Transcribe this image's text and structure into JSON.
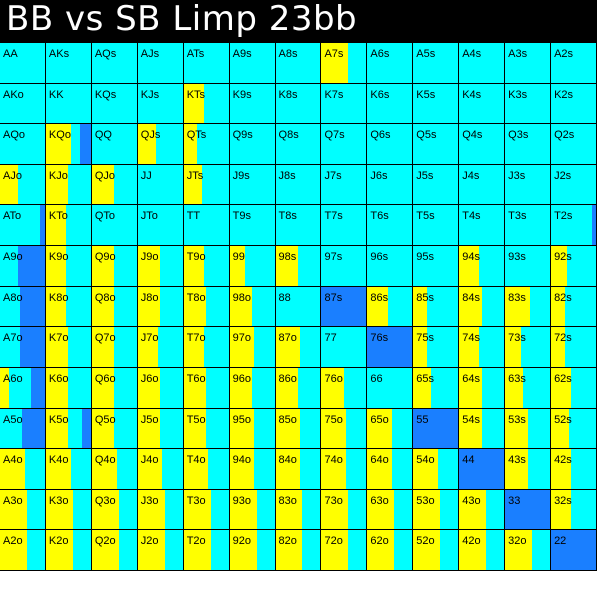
{
  "title": "BB vs SB Limp 23bb",
  "colors": {
    "fold": "#ffff00",
    "call": "#00ffff",
    "raise": "#1a7fff",
    "border": "#000000",
    "title_bg": "#000000",
    "title_fg": "#ffffff"
  },
  "legend_keys": [
    "fold",
    "call",
    "raise"
  ],
  "hands": [
    [
      "AA",
      "AKs",
      "AQs",
      "AJs",
      "ATs",
      "A9s",
      "A8s",
      "A7s",
      "A6s",
      "A5s",
      "A4s",
      "A3s",
      "A2s"
    ],
    [
      "AKo",
      "KK",
      "KQs",
      "KJs",
      "KTs",
      "K9s",
      "K8s",
      "K7s",
      "K6s",
      "K5s",
      "K4s",
      "K3s",
      "K2s"
    ],
    [
      "AQo",
      "KQo",
      "QQ",
      "QJs",
      "QTs",
      "Q9s",
      "Q8s",
      "Q7s",
      "Q6s",
      "Q5s",
      "Q4s",
      "Q3s",
      "Q2s"
    ],
    [
      "AJo",
      "KJo",
      "QJo",
      "JJ",
      "JTs",
      "J9s",
      "J8s",
      "J7s",
      "J6s",
      "J5s",
      "J4s",
      "J3s",
      "J2s"
    ],
    [
      "ATo",
      "KTo",
      "QTo",
      "JTo",
      "TT",
      "T9s",
      "T8s",
      "T7s",
      "T6s",
      "T5s",
      "T4s",
      "T3s",
      "T2s"
    ],
    [
      "A9o",
      "K9o",
      "Q9o",
      "J9o",
      "T9o",
      "99",
      "98s",
      "97s",
      "96s",
      "95s",
      "94s",
      "93s",
      "92s"
    ],
    [
      "A8o",
      "K8o",
      "Q8o",
      "J8o",
      "T8o",
      "98o",
      "88",
      "87s",
      "86s",
      "85s",
      "84s",
      "83s",
      "82s"
    ],
    [
      "A7o",
      "K7o",
      "Q7o",
      "J7o",
      "T7o",
      "97o",
      "87o",
      "77",
      "76s",
      "75s",
      "74s",
      "73s",
      "72s"
    ],
    [
      "A6o",
      "K6o",
      "Q6o",
      "J6o",
      "T6o",
      "96o",
      "86o",
      "76o",
      "66",
      "65s",
      "64s",
      "63s",
      "62s"
    ],
    [
      "A5o",
      "K5o",
      "Q5o",
      "J5o",
      "T5o",
      "95o",
      "85o",
      "75o",
      "65o",
      "55",
      "54s",
      "53s",
      "52s"
    ],
    [
      "A4o",
      "K4o",
      "Q4o",
      "J4o",
      "T4o",
      "94o",
      "84o",
      "74o",
      "64o",
      "54o",
      "44",
      "43s",
      "42s"
    ],
    [
      "A3o",
      "K3o",
      "Q3o",
      "J3o",
      "T3o",
      "93o",
      "83o",
      "73o",
      "63o",
      "53o",
      "43o",
      "33",
      "32s"
    ],
    [
      "A2o",
      "K2o",
      "Q2o",
      "J2o",
      "T2o",
      "92o",
      "82o",
      "72o",
      "62o",
      "52o",
      "42o",
      "32o",
      "22"
    ]
  ],
  "strategy": [
    [
      [
        0,
        1,
        0
      ],
      [
        0,
        1,
        0
      ],
      [
        0,
        1,
        0
      ],
      [
        0,
        1,
        0
      ],
      [
        0,
        1,
        0
      ],
      [
        0,
        1,
        0
      ],
      [
        0,
        1,
        0
      ],
      [
        0.6,
        0.4,
        0
      ],
      [
        0,
        1,
        0
      ],
      [
        0,
        1,
        0
      ],
      [
        0,
        1,
        0
      ],
      [
        0,
        1,
        0
      ],
      [
        0,
        1,
        0
      ]
    ],
    [
      [
        0,
        1,
        0
      ],
      [
        0,
        1,
        0
      ],
      [
        0,
        1,
        0
      ],
      [
        0,
        1,
        0
      ],
      [
        0.45,
        0.55,
        0
      ],
      [
        0,
        1,
        0
      ],
      [
        0,
        1,
        0
      ],
      [
        0,
        1,
        0
      ],
      [
        0,
        1,
        0
      ],
      [
        0,
        1,
        0
      ],
      [
        0,
        1,
        0
      ],
      [
        0,
        1,
        0
      ],
      [
        0,
        1,
        0
      ]
    ],
    [
      [
        0,
        1,
        0
      ],
      [
        0.55,
        0.2,
        0.25
      ],
      [
        0,
        1,
        0
      ],
      [
        0.4,
        0.6,
        0
      ],
      [
        0.3,
        0.7,
        0
      ],
      [
        0,
        1,
        0
      ],
      [
        0,
        1,
        0
      ],
      [
        0,
        1,
        0
      ],
      [
        0,
        1,
        0
      ],
      [
        0,
        1,
        0
      ],
      [
        0,
        1,
        0
      ],
      [
        0,
        1,
        0
      ],
      [
        0,
        1,
        0
      ]
    ],
    [
      [
        0.4,
        0.6,
        0
      ],
      [
        0.5,
        0.5,
        0
      ],
      [
        0.5,
        0.5,
        0
      ],
      [
        0,
        1,
        0
      ],
      [
        0.4,
        0.6,
        0
      ],
      [
        0,
        1,
        0
      ],
      [
        0,
        1,
        0
      ],
      [
        0,
        1,
        0
      ],
      [
        0,
        1,
        0
      ],
      [
        0,
        1,
        0
      ],
      [
        0,
        1,
        0
      ],
      [
        0,
        1,
        0
      ],
      [
        0,
        1,
        0
      ]
    ],
    [
      [
        0,
        0.9,
        0.1
      ],
      [
        0.45,
        0.55,
        0
      ],
      [
        0,
        1,
        0
      ],
      [
        0,
        1,
        0
      ],
      [
        0,
        1,
        0
      ],
      [
        0,
        1,
        0
      ],
      [
        0,
        1,
        0
      ],
      [
        0,
        1,
        0
      ],
      [
        0,
        1,
        0
      ],
      [
        0,
        1,
        0
      ],
      [
        0,
        1,
        0
      ],
      [
        0,
        1,
        0
      ],
      [
        0,
        0.92,
        0.08
      ]
    ],
    [
      [
        0,
        0.4,
        0.6
      ],
      [
        0.45,
        0.55,
        0
      ],
      [
        0.5,
        0.5,
        0
      ],
      [
        0.5,
        0.5,
        0
      ],
      [
        0.45,
        0.55,
        0
      ],
      [
        0.35,
        0.65,
        0
      ],
      [
        0.5,
        0.5,
        0
      ],
      [
        0,
        1,
        0
      ],
      [
        0,
        1,
        0
      ],
      [
        0,
        1,
        0
      ],
      [
        0.45,
        0.55,
        0
      ],
      [
        0,
        1,
        0
      ],
      [
        0.35,
        0.65,
        0
      ]
    ],
    [
      [
        0,
        0.45,
        0.55
      ],
      [
        0.45,
        0.55,
        0
      ],
      [
        0.5,
        0.5,
        0
      ],
      [
        0.5,
        0.5,
        0
      ],
      [
        0.5,
        0.5,
        0
      ],
      [
        0.5,
        0.5,
        0
      ],
      [
        0,
        1,
        0
      ],
      [
        0,
        0,
        1
      ],
      [
        0.45,
        0.55,
        0
      ],
      [
        0.3,
        0.7,
        0
      ],
      [
        0.5,
        0.5,
        0
      ],
      [
        0.55,
        0.45,
        0
      ],
      [
        0.3,
        0.7,
        0
      ]
    ],
    [
      [
        0,
        0.45,
        0.55
      ],
      [
        0.5,
        0.5,
        0
      ],
      [
        0.5,
        0.5,
        0
      ],
      [
        0.45,
        0.55,
        0
      ],
      [
        0.45,
        0.55,
        0
      ],
      [
        0.55,
        0.45,
        0
      ],
      [
        0.55,
        0.45,
        0
      ],
      [
        0,
        1,
        0
      ],
      [
        0,
        0,
        1
      ],
      [
        0.3,
        0.7,
        0
      ],
      [
        0.45,
        0.55,
        0
      ],
      [
        0.35,
        0.65,
        0
      ],
      [
        0.3,
        0.7,
        0
      ]
    ],
    [
      [
        0.2,
        0.5,
        0.3
      ],
      [
        0.5,
        0.5,
        0
      ],
      [
        0.5,
        0.5,
        0
      ],
      [
        0.5,
        0.5,
        0
      ],
      [
        0.5,
        0.5,
        0
      ],
      [
        0.5,
        0.5,
        0
      ],
      [
        0.5,
        0.5,
        0
      ],
      [
        0.5,
        0.5,
        0
      ],
      [
        0,
        1,
        0
      ],
      [
        0.4,
        0.6,
        0
      ],
      [
        0.5,
        0.5,
        0
      ],
      [
        0.4,
        0.6,
        0
      ],
      [
        0.45,
        0.55,
        0
      ]
    ],
    [
      [
        0,
        0.5,
        0.5
      ],
      [
        0.5,
        0.3,
        0.2
      ],
      [
        0.5,
        0.5,
        0
      ],
      [
        0.5,
        0.5,
        0
      ],
      [
        0.5,
        0.5,
        0
      ],
      [
        0.55,
        0.45,
        0
      ],
      [
        0.55,
        0.45,
        0
      ],
      [
        0.55,
        0.45,
        0
      ],
      [
        0.55,
        0.45,
        0
      ],
      [
        0,
        0,
        1
      ],
      [
        0.5,
        0.5,
        0
      ],
      [
        0.5,
        0.5,
        0
      ],
      [
        0.4,
        0.6,
        0
      ]
    ],
    [
      [
        0.55,
        0.45,
        0
      ],
      [
        0.55,
        0.45,
        0
      ],
      [
        0.55,
        0.45,
        0
      ],
      [
        0.55,
        0.45,
        0
      ],
      [
        0.55,
        0.45,
        0
      ],
      [
        0.55,
        0.45,
        0
      ],
      [
        0.55,
        0.45,
        0
      ],
      [
        0.55,
        0.45,
        0
      ],
      [
        0.55,
        0.45,
        0
      ],
      [
        0.55,
        0.45,
        0
      ],
      [
        0,
        0,
        1
      ],
      [
        0.5,
        0.5,
        0
      ],
      [
        0.45,
        0.55,
        0
      ]
    ],
    [
      [
        0.6,
        0.4,
        0
      ],
      [
        0.6,
        0.4,
        0
      ],
      [
        0.6,
        0.4,
        0
      ],
      [
        0.6,
        0.4,
        0
      ],
      [
        0.6,
        0.4,
        0
      ],
      [
        0.6,
        0.4,
        0
      ],
      [
        0.6,
        0.4,
        0
      ],
      [
        0.6,
        0.4,
        0
      ],
      [
        0.6,
        0.4,
        0
      ],
      [
        0.6,
        0.4,
        0
      ],
      [
        0.6,
        0.4,
        0
      ],
      [
        0,
        0,
        1
      ],
      [
        0.45,
        0.55,
        0
      ]
    ],
    [
      [
        0.6,
        0.4,
        0
      ],
      [
        0.6,
        0.4,
        0
      ],
      [
        0.6,
        0.4,
        0
      ],
      [
        0.6,
        0.4,
        0
      ],
      [
        0.6,
        0.4,
        0
      ],
      [
        0.6,
        0.4,
        0
      ],
      [
        0.6,
        0.4,
        0
      ],
      [
        0.6,
        0.4,
        0
      ],
      [
        0.6,
        0.4,
        0
      ],
      [
        0.6,
        0.4,
        0
      ],
      [
        0.6,
        0.4,
        0
      ],
      [
        0.6,
        0.4,
        0
      ],
      [
        0,
        0,
        1
      ]
    ]
  ]
}
